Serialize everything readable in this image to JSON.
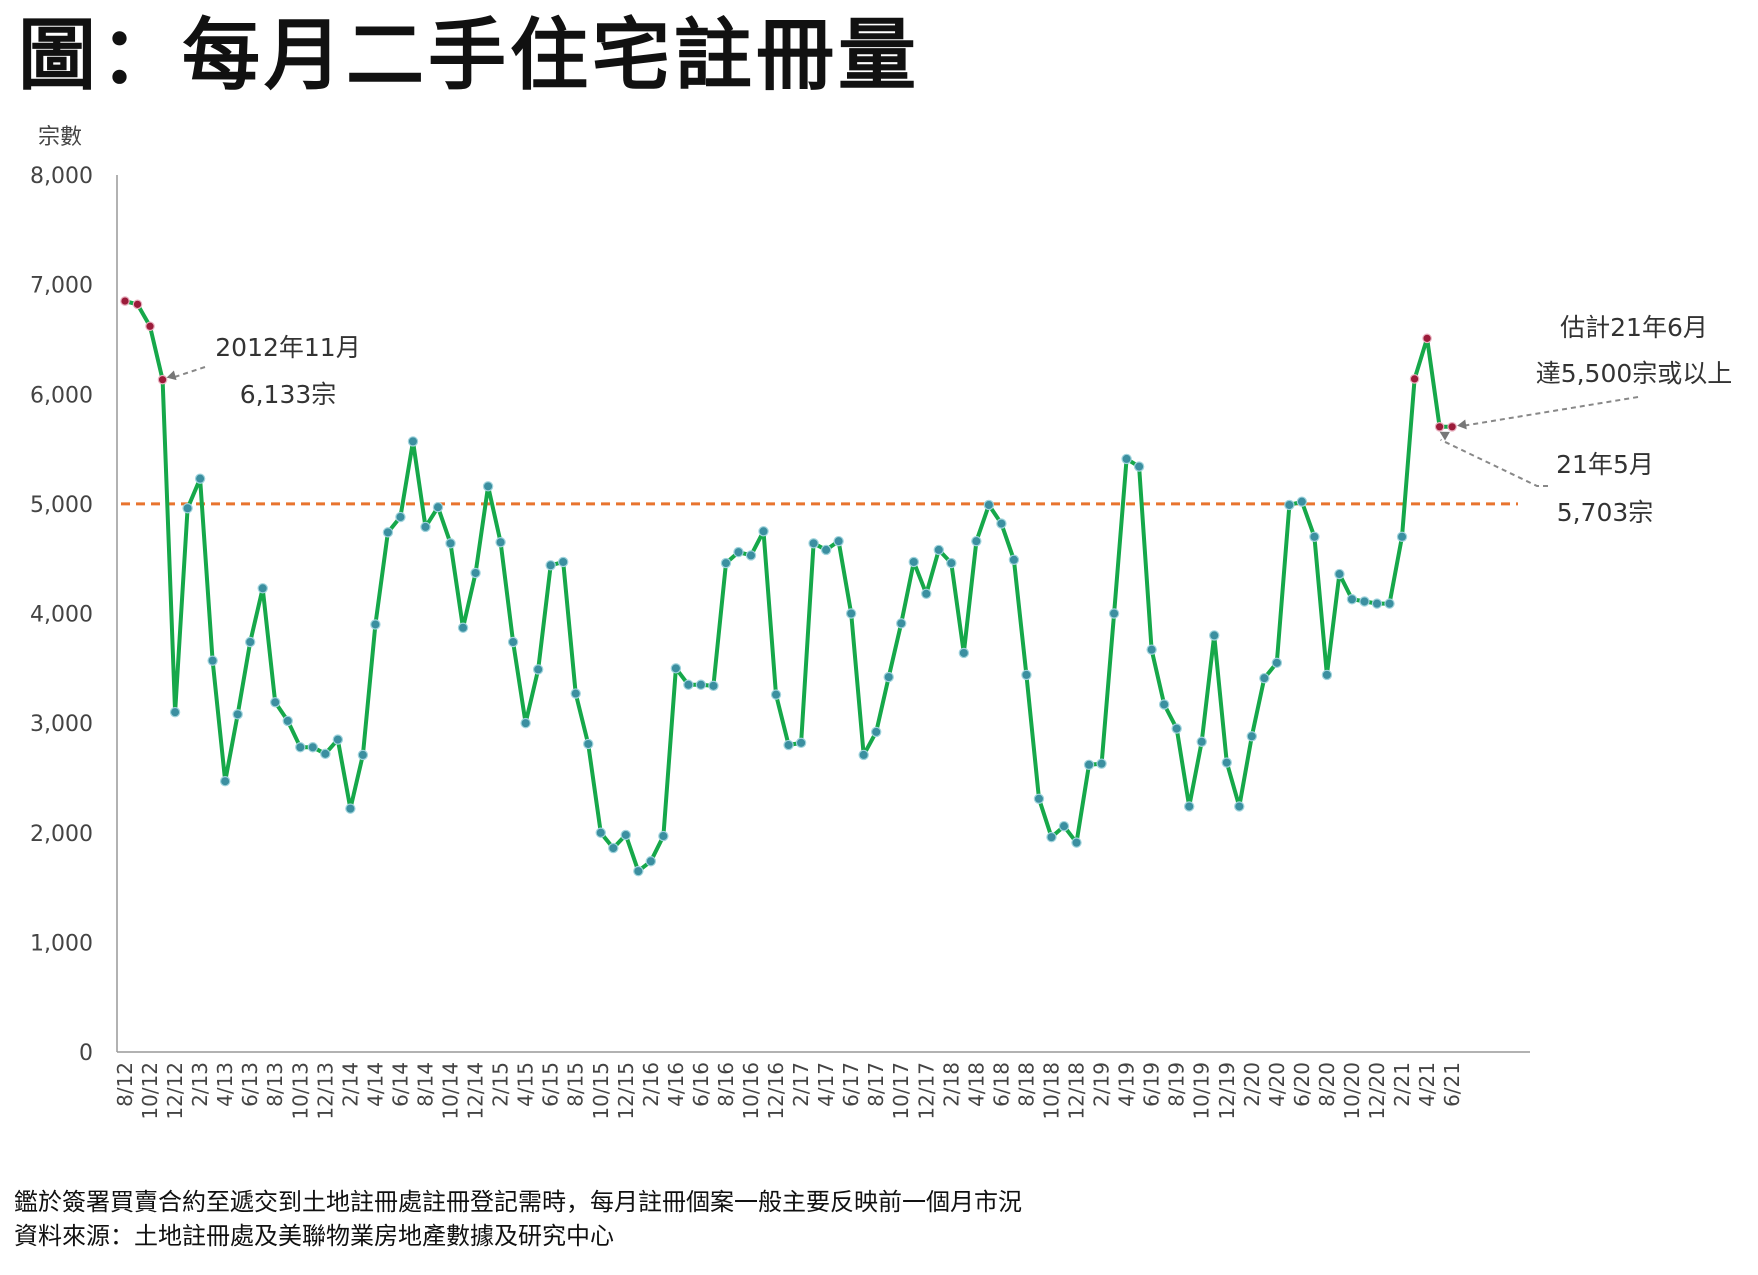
{
  "title": "圖：每月二手住宅註冊量",
  "chart_data": {
    "type": "line",
    "ylabel": "宗數",
    "ylim": [
      0,
      8000
    ],
    "yticks": [
      "0",
      "1,000",
      "2,000",
      "3,000",
      "4,000",
      "5,000",
      "6,000",
      "7,000",
      "8,000"
    ],
    "tick_labels": [
      "8/12",
      "10/12",
      "12/12",
      "2/13",
      "4/13",
      "6/13",
      "8/13",
      "10/13",
      "12/13",
      "2/14",
      "4/14",
      "6/14",
      "8/14",
      "10/14",
      "12/14",
      "2/15",
      "4/15",
      "6/15",
      "8/15",
      "10/15",
      "12/15",
      "2/16",
      "4/16",
      "6/16",
      "8/16",
      "10/16",
      "12/16",
      "2/17",
      "4/17",
      "6/17",
      "8/17",
      "10/17",
      "12/17",
      "2/18",
      "4/18",
      "6/18",
      "8/18",
      "10/18",
      "12/18",
      "2/19",
      "4/19",
      "6/19",
      "8/19",
      "10/19",
      "12/19",
      "2/20",
      "4/20",
      "6/20",
      "8/20",
      "10/20",
      "12/20",
      "2/21",
      "4/21",
      "6/21"
    ],
    "x": [
      "8/12",
      "9/12",
      "10/12",
      "11/12",
      "12/12",
      "1/13",
      "2/13",
      "3/13",
      "4/13",
      "5/13",
      "6/13",
      "7/13",
      "8/13",
      "9/13",
      "10/13",
      "11/13",
      "12/13",
      "1/14",
      "2/14",
      "3/14",
      "4/14",
      "5/14",
      "6/14",
      "7/14",
      "8/14",
      "9/14",
      "10/14",
      "11/14",
      "12/14",
      "1/15",
      "2/15",
      "3/15",
      "4/15",
      "5/15",
      "6/15",
      "7/15",
      "8/15",
      "9/15",
      "10/15",
      "11/15",
      "12/15",
      "1/16",
      "2/16",
      "3/16",
      "4/16",
      "5/16",
      "6/16",
      "7/16",
      "8/16",
      "9/16",
      "10/16",
      "11/16",
      "12/16",
      "1/17",
      "2/17",
      "3/17",
      "4/17",
      "5/17",
      "6/17",
      "7/17",
      "8/17",
      "9/17",
      "10/17",
      "11/17",
      "12/17",
      "1/18",
      "2/18",
      "3/18",
      "4/18",
      "5/18",
      "6/18",
      "7/18",
      "8/18",
      "9/18",
      "10/18",
      "11/18",
      "12/18",
      "1/19",
      "2/19",
      "3/19",
      "4/19",
      "5/19",
      "6/19",
      "7/19",
      "8/19",
      "9/19",
      "10/19",
      "11/19",
      "12/19",
      "1/20",
      "2/20",
      "3/20",
      "4/20",
      "5/20",
      "6/20",
      "7/20",
      "8/20",
      "9/20",
      "10/20",
      "11/20",
      "12/20",
      "1/21",
      "2/21",
      "3/21",
      "4/21",
      "5/21",
      "6/21"
    ],
    "series": [
      {
        "values": [
          6850,
          6820,
          6620,
          6133,
          3100,
          4960,
          5230,
          3570,
          2470,
          3080,
          3740,
          4230,
          3190,
          3020,
          2780,
          2780,
          2720,
          2850,
          2220,
          2710,
          3900,
          4740,
          4880,
          5570,
          4790,
          4970,
          4640,
          3870,
          4370,
          5160,
          4650,
          3740,
          3000,
          3490,
          4440,
          4470,
          3270,
          2810,
          2000,
          1860,
          1980,
          1650,
          1740,
          1970,
          3500,
          3350,
          3350,
          3340,
          4460,
          4560,
          4530,
          4750,
          3260,
          2800,
          2820,
          4640,
          4580,
          4660,
          4000,
          2710,
          2920,
          3420,
          3910,
          4470,
          4180,
          4580,
          4460,
          3640,
          4660,
          4990,
          4820,
          4490,
          3440,
          2310,
          1960,
          2060,
          1910,
          2620,
          2630,
          4000,
          5410,
          5340,
          3670,
          3170,
          2950,
          2240,
          2830,
          3800,
          2640,
          2240,
          2880,
          3410,
          3550,
          4990,
          5020,
          4700,
          3440,
          4360,
          4130,
          4110,
          4090,
          4090,
          4700,
          6140,
          6510,
          5703,
          5703
        ]
      }
    ],
    "reference_line": {
      "value": 5000,
      "color": "#E8742E",
      "style": "dashed"
    },
    "line_color": "#16A84A",
    "marker_color": "#3B8FA0",
    "highlight_color": "#9B1B3A",
    "grid": false,
    "annotations": [
      {
        "lines": [
          "2012年11月",
          "6,133宗"
        ],
        "x": "11/12",
        "y": 6133
      },
      {
        "lines": [
          "估計21年6月",
          "達5,500宗或以上"
        ],
        "x": "6/21",
        "y": 5703
      },
      {
        "lines": [
          "21年5月",
          "5,703宗"
        ],
        "x": "5/21",
        "y": 5703
      }
    ]
  },
  "footnotes": [
    "鑑於簽署買賣合約至遞交到土地註冊處註冊登記需時，每月註冊個案一般主要反映前一個月市況",
    "資料來源：土地註冊處及美聯物業房地產數據及研究中心"
  ]
}
